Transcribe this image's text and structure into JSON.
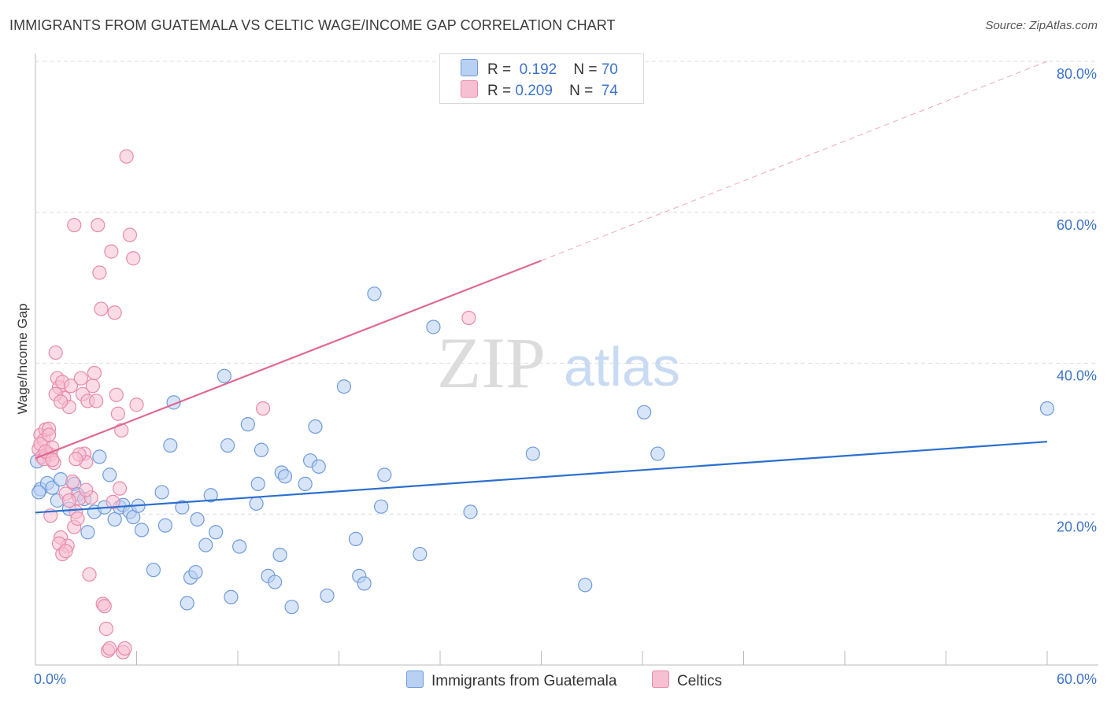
{
  "header": {
    "title": "IMMIGRANTS FROM GUATEMALA VS CELTIC WAGE/INCOME GAP CORRELATION CHART",
    "source": "Source: ZipAtlas.com"
  },
  "watermark": {
    "zip": "ZIP",
    "atlas": "atlas"
  },
  "legend": {
    "rows": [
      {
        "r_label": "R =",
        "r_value": "0.192",
        "n_label": "N =",
        "n_value": "70"
      },
      {
        "r_label": "R =",
        "r_value": "0.209",
        "n_label": "N =",
        "n_value": "74"
      }
    ]
  },
  "colors": {
    "blue_fill": "#b8d0f2",
    "blue_stroke": "#6f9bdc",
    "blue_line": "#2a6fd0",
    "pink_fill": "#f7c0d2",
    "pink_stroke": "#e88aa9",
    "pink_line": "#e06991",
    "axis_text": "#3d74c8",
    "grid": "#dddddd"
  },
  "chart_data": {
    "type": "scatter",
    "title": "IMMIGRANTS FROM GUATEMALA VS CELTIC WAGE/INCOME GAP CORRELATION CHART",
    "xlabel": "",
    "ylabel": "Wage/Income Gap",
    "xlim": [
      0,
      60
    ],
    "ylim": [
      0,
      80
    ],
    "x_tick_labels": [
      "0.0%",
      "60.0%"
    ],
    "y_tick_values": [
      20,
      40,
      60,
      80
    ],
    "y_tick_labels": [
      "20.0%",
      "40.0%",
      "60.0%",
      "80.0%"
    ],
    "legend_position": "bottom",
    "series": [
      {
        "name": "Immigrants from Guatemala",
        "color": "#6f9bdc",
        "trend": {
          "x0": 0,
          "y0": 20.2,
          "x1": 60,
          "y1": 29.6
        },
        "points": [
          [
            0.1,
            27.0
          ],
          [
            0.3,
            23.3
          ],
          [
            0.7,
            24.1
          ],
          [
            1.0,
            23.5
          ],
          [
            1.3,
            21.8
          ],
          [
            1.5,
            24.6
          ],
          [
            2.0,
            20.7
          ],
          [
            2.3,
            24.0
          ],
          [
            2.5,
            22.6
          ],
          [
            2.9,
            22.0
          ],
          [
            3.1,
            17.6
          ],
          [
            3.5,
            20.3
          ],
          [
            3.8,
            27.6
          ],
          [
            4.1,
            20.9
          ],
          [
            4.4,
            25.2
          ],
          [
            4.7,
            19.3
          ],
          [
            5.0,
            20.9
          ],
          [
            5.2,
            21.2
          ],
          [
            5.6,
            20.3
          ],
          [
            5.8,
            19.6
          ],
          [
            6.1,
            21.1
          ],
          [
            6.3,
            17.9
          ],
          [
            7.0,
            12.6
          ],
          [
            7.5,
            22.9
          ],
          [
            7.7,
            18.5
          ],
          [
            8.0,
            29.1
          ],
          [
            8.2,
            34.8
          ],
          [
            8.7,
            20.9
          ],
          [
            9.0,
            8.2
          ],
          [
            9.2,
            11.6
          ],
          [
            9.5,
            12.3
          ],
          [
            9.6,
            19.3
          ],
          [
            10.1,
            15.9
          ],
          [
            10.4,
            22.5
          ],
          [
            10.7,
            17.6
          ],
          [
            11.2,
            38.3
          ],
          [
            11.4,
            29.1
          ],
          [
            11.6,
            9.0
          ],
          [
            12.1,
            15.7
          ],
          [
            12.6,
            31.9
          ],
          [
            13.1,
            21.4
          ],
          [
            13.2,
            24.0
          ],
          [
            13.4,
            28.5
          ],
          [
            13.8,
            11.8
          ],
          [
            14.2,
            11.0
          ],
          [
            14.5,
            14.6
          ],
          [
            14.6,
            25.5
          ],
          [
            14.8,
            25.0
          ],
          [
            15.2,
            7.7
          ],
          [
            16.0,
            24.0
          ],
          [
            16.3,
            27.1
          ],
          [
            16.6,
            31.6
          ],
          [
            16.8,
            26.3
          ],
          [
            17.3,
            9.2
          ],
          [
            18.3,
            36.9
          ],
          [
            19.0,
            16.7
          ],
          [
            19.2,
            11.8
          ],
          [
            19.5,
            10.8
          ],
          [
            20.1,
            49.2
          ],
          [
            20.5,
            21.0
          ],
          [
            20.7,
            25.2
          ],
          [
            22.8,
            14.7
          ],
          [
            23.6,
            44.8
          ],
          [
            25.8,
            20.3
          ],
          [
            29.5,
            28.0
          ],
          [
            32.6,
            10.6
          ],
          [
            36.1,
            33.5
          ],
          [
            36.9,
            28.0
          ],
          [
            60.0,
            34.0
          ],
          [
            0.2,
            22.9
          ]
        ]
      },
      {
        "name": "Celtics",
        "color": "#e88aa9",
        "trend": {
          "x0": 0,
          "y0": 27.4,
          "x1": 30,
          "y1": 53.6,
          "dashed_to": {
            "x": 60,
            "y": 80.0
          }
        },
        "points": [
          [
            0.2,
            28.6
          ],
          [
            0.3,
            30.5
          ],
          [
            0.4,
            27.6
          ],
          [
            0.5,
            29.8
          ],
          [
            0.6,
            31.2
          ],
          [
            0.7,
            28.0
          ],
          [
            0.8,
            31.3
          ],
          [
            0.9,
            27.9
          ],
          [
            1.0,
            28.8
          ],
          [
            1.1,
            26.8
          ],
          [
            1.2,
            41.4
          ],
          [
            1.3,
            38.0
          ],
          [
            1.4,
            36.8
          ],
          [
            1.5,
            16.9
          ],
          [
            1.6,
            37.5
          ],
          [
            1.7,
            35.4
          ],
          [
            1.8,
            22.7
          ],
          [
            1.9,
            15.8
          ],
          [
            2.0,
            34.2
          ],
          [
            2.1,
            37.0
          ],
          [
            2.2,
            24.3
          ],
          [
            2.3,
            18.3
          ],
          [
            2.4,
            20.3
          ],
          [
            2.5,
            19.4
          ],
          [
            2.6,
            22.1
          ],
          [
            2.7,
            38.0
          ],
          [
            2.8,
            35.9
          ],
          [
            2.9,
            28.0
          ],
          [
            3.0,
            26.9
          ],
          [
            3.1,
            35.0
          ],
          [
            3.2,
            12.0
          ],
          [
            3.3,
            22.2
          ],
          [
            3.4,
            37.0
          ],
          [
            3.5,
            38.7
          ],
          [
            3.6,
            35.0
          ],
          [
            3.7,
            58.3
          ],
          [
            3.8,
            52.0
          ],
          [
            3.9,
            47.2
          ],
          [
            4.0,
            8.1
          ],
          [
            4.1,
            7.8
          ],
          [
            4.2,
            4.8
          ],
          [
            4.3,
            1.9
          ],
          [
            4.4,
            2.2
          ],
          [
            4.5,
            54.8
          ],
          [
            4.6,
            21.6
          ],
          [
            4.7,
            46.7
          ],
          [
            4.8,
            35.8
          ],
          [
            4.9,
            33.3
          ],
          [
            5.0,
            23.4
          ],
          [
            5.1,
            31.1
          ],
          [
            5.2,
            1.7
          ],
          [
            5.3,
            2.2
          ],
          [
            5.4,
            67.4
          ],
          [
            5.6,
            57.0
          ],
          [
            5.8,
            53.9
          ],
          [
            6.0,
            34.5
          ],
          [
            0.3,
            29.3
          ],
          [
            0.5,
            27.3
          ],
          [
            0.6,
            28.3
          ],
          [
            0.8,
            30.5
          ],
          [
            1.0,
            27.2
          ],
          [
            1.2,
            35.9
          ],
          [
            1.4,
            16.1
          ],
          [
            1.5,
            34.9
          ],
          [
            2.0,
            21.8
          ],
          [
            2.3,
            58.3
          ],
          [
            2.6,
            27.9
          ],
          [
            0.9,
            19.8
          ],
          [
            1.6,
            14.7
          ],
          [
            1.8,
            15.1
          ],
          [
            2.4,
            27.3
          ],
          [
            3.0,
            23.2
          ],
          [
            13.5,
            34.0
          ],
          [
            25.7,
            46.0
          ]
        ]
      }
    ]
  },
  "bottom_legend": {
    "items": [
      {
        "label": "Immigrants from Guatemala"
      },
      {
        "label": "Celtics"
      }
    ]
  }
}
